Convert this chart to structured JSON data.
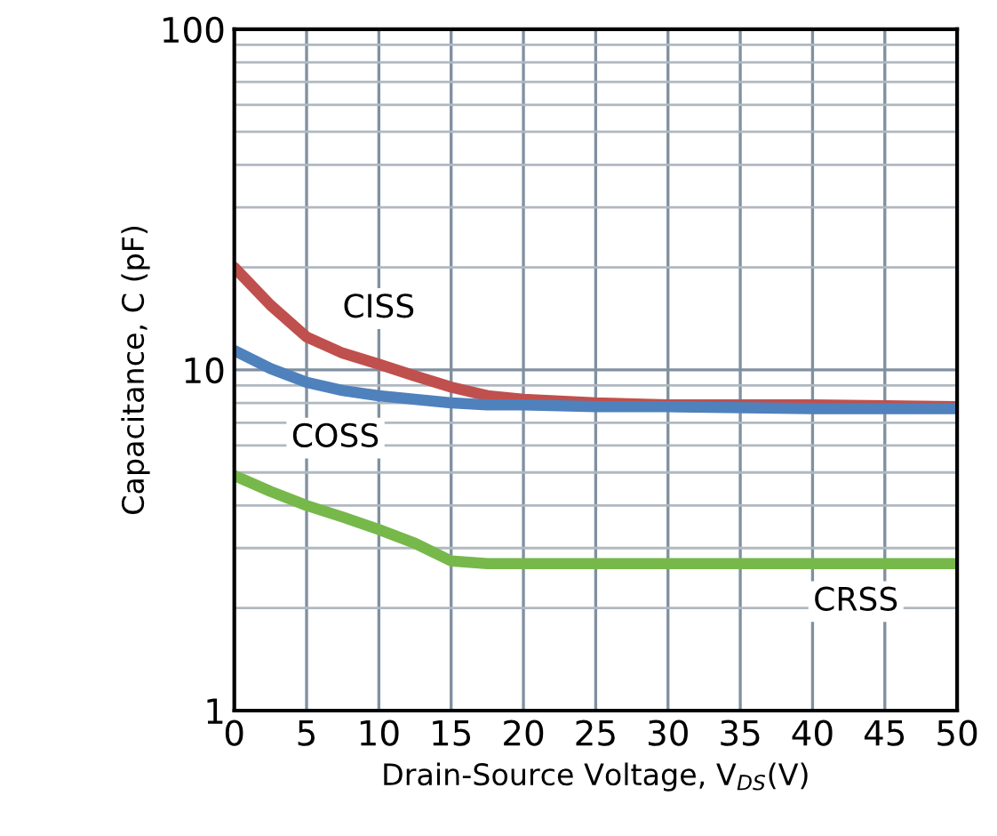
{
  "chart_data": {
    "type": "line",
    "xlabel": "Drain-Source Voltage, V$_{DS}$(V)",
    "ylabel": "Capacitance, C (pF)",
    "log": "y",
    "grid": true,
    "x": [
      0,
      2.5,
      5,
      7.5,
      10,
      12.5,
      15,
      17.5,
      20,
      25,
      30,
      40,
      50
    ],
    "series": [
      {
        "name": "CISS",
        "color": "#c0504d",
        "values": [
          20,
          15.5,
          12.5,
          11.2,
          10.4,
          9.6,
          8.9,
          8.4,
          8.2,
          8.0,
          7.9,
          7.9,
          7.8
        ]
      },
      {
        "name": "COSS",
        "color": "#4f81bd",
        "values": [
          11.4,
          10.1,
          9.2,
          8.7,
          8.4,
          8.2,
          8.0,
          7.9,
          7.9,
          7.8,
          7.8,
          7.7,
          7.7
        ]
      },
      {
        "name": "CRSS",
        "color": "#77b84a",
        "values": [
          4.9,
          4.4,
          4.0,
          3.7,
          3.4,
          3.1,
          2.75,
          2.7,
          2.7,
          2.7,
          2.7,
          2.7,
          2.7
        ]
      }
    ],
    "xlim": [
      0,
      50
    ],
    "xticks": [
      0,
      5,
      10,
      15,
      20,
      25,
      30,
      35,
      40,
      45,
      50
    ],
    "ylim": [
      1,
      100
    ],
    "yticks": [
      1,
      10,
      100
    ]
  }
}
